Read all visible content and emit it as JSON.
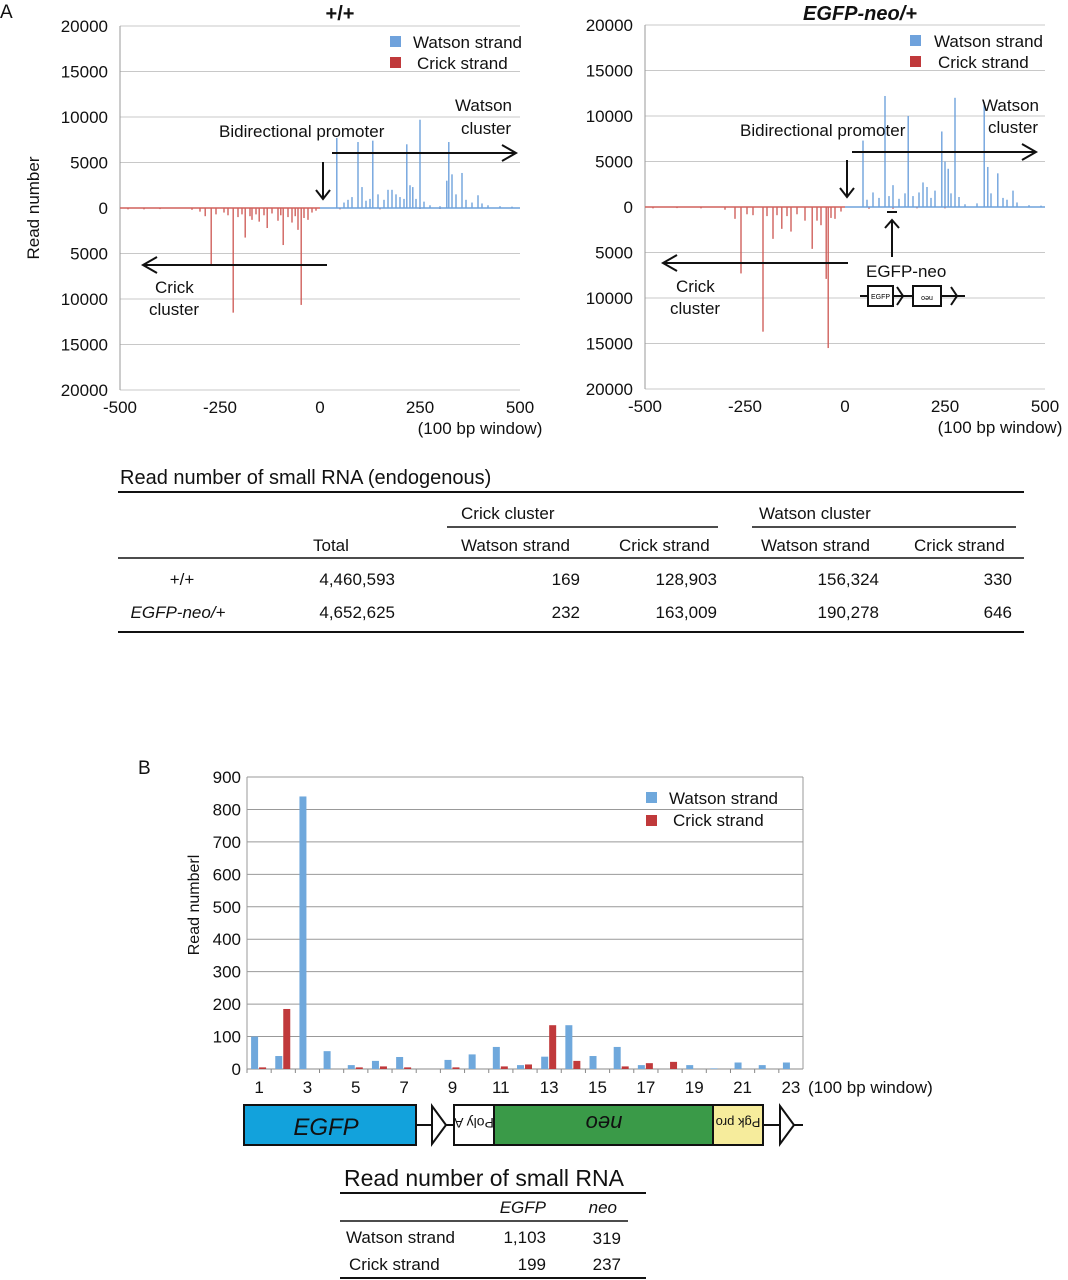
{
  "panel_labels": {
    "a": "A",
    "b": "B"
  },
  "colors": {
    "watson": "#6fa2dc",
    "crick": "#d0605c",
    "watson_b": "#6fa8dc",
    "crick_b": "#c0393b",
    "egfp": "#12a2dc",
    "neo": "#3a9a48",
    "pgk": "#f6ec9c"
  },
  "chart_data": [
    {
      "type": "bar",
      "title": "+/+",
      "ylabel": "Read number",
      "xlabel": "(100 bp window)",
      "xlim": [
        -500,
        500
      ],
      "ylim": [
        -20000,
        20000
      ],
      "x_ticks": [
        -500,
        -250,
        0,
        250,
        500
      ],
      "x_tick_labels": [
        "-500",
        "-250",
        "0",
        "250",
        "500"
      ],
      "y_ticks": [
        20000,
        15000,
        10000,
        5000,
        0,
        -5000,
        -10000,
        -15000,
        -20000
      ],
      "y_tick_labels": [
        "20000",
        "15000",
        "10000",
        "5000",
        "0",
        "5000",
        "10000",
        "15000",
        "20000"
      ],
      "grid": true,
      "legend": "top-right",
      "annotations": {
        "promoter": "Bidirectional promoter",
        "watson_1": "Watson",
        "watson_2": "cluster",
        "crick_1": "Crick",
        "crick_2": "cluster"
      },
      "series": [
        {
          "name": "Watson strand",
          "color": "#6fa2dc",
          "points": [
            [
              42,
              7700
            ],
            [
              60,
              600
            ],
            [
              70,
              900
            ],
            [
              80,
              1200
            ],
            [
              95,
              7250
            ],
            [
              105,
              2300
            ],
            [
              115,
              800
            ],
            [
              125,
              1000
            ],
            [
              132,
              7400
            ],
            [
              145,
              1500
            ],
            [
              160,
              900
            ],
            [
              170,
              2000
            ],
            [
              180,
              2000
            ],
            [
              190,
              1500
            ],
            [
              200,
              1200
            ],
            [
              210,
              1000
            ],
            [
              217,
              7000
            ],
            [
              225,
              2500
            ],
            [
              232,
              2300
            ],
            [
              240,
              1000
            ],
            [
              250,
              9700
            ],
            [
              260,
              700
            ],
            [
              275,
              300
            ],
            [
              300,
              200
            ],
            [
              317,
              3000
            ],
            [
              322,
              7250
            ],
            [
              330,
              3700
            ],
            [
              340,
              1500
            ],
            [
              355,
              3850
            ],
            [
              365,
              900
            ],
            [
              380,
              600
            ],
            [
              395,
              1400
            ],
            [
              405,
              500
            ],
            [
              420,
              300
            ],
            [
              450,
              200
            ],
            [
              480,
              150
            ]
          ]
        },
        {
          "name": "Crick strand",
          "color": "#d0605c",
          "points": [
            [
              -480,
              -150
            ],
            [
              -440,
              -150
            ],
            [
              -400,
              -120
            ],
            [
              -320,
              -200
            ],
            [
              -300,
              -400
            ],
            [
              -287,
              -900
            ],
            [
              -272,
              -6260
            ],
            [
              -260,
              -700
            ],
            [
              -240,
              -500
            ],
            [
              -230,
              -800
            ],
            [
              -217,
              -11500
            ],
            [
              -205,
              -1000
            ],
            [
              -195,
              -700
            ],
            [
              -187,
              -3250
            ],
            [
              -175,
              -900
            ],
            [
              -170,
              -1300
            ],
            [
              -160,
              -700
            ],
            [
              -152,
              -1500
            ],
            [
              -140,
              -800
            ],
            [
              -132,
              -2200
            ],
            [
              -120,
              -600
            ],
            [
              -105,
              -1400
            ],
            [
              -98,
              -800
            ],
            [
              -92,
              -4070
            ],
            [
              -80,
              -1000
            ],
            [
              -70,
              -1600
            ],
            [
              -62,
              -900
            ],
            [
              -55,
              -2400
            ],
            [
              -47,
              -10650
            ],
            [
              -40,
              -1100
            ],
            [
              -30,
              -1300
            ],
            [
              -20,
              -500
            ],
            [
              -10,
              -300
            ],
            [
              50,
              -150
            ],
            [
              150,
              -150
            ],
            [
              250,
              -100
            ],
            [
              300,
              -100
            ]
          ]
        }
      ]
    },
    {
      "type": "bar",
      "title": "EGFP-neo/+",
      "xlabel": "(100 bp window)",
      "xlim": [
        -500,
        500
      ],
      "ylim": [
        -20000,
        20000
      ],
      "x_ticks": [
        -500,
        -250,
        0,
        250,
        500
      ],
      "x_tick_labels": [
        "-500",
        "-250",
        "0",
        "250",
        "500"
      ],
      "y_ticks": [
        20000,
        15000,
        10000,
        5000,
        0,
        -5000,
        -10000,
        -15000,
        -20000
      ],
      "y_tick_labels": [
        "20000",
        "15000",
        "10000",
        "5000",
        "0",
        "5000",
        "10000",
        "15000",
        "20000"
      ],
      "grid": true,
      "legend": "top-right",
      "annotations": {
        "promoter": "Bidirectional promoter",
        "watson_1": "Watson",
        "watson_2": "cluster",
        "crick_1": "Crick",
        "crick_2": "cluster",
        "insert": "EGFP-neo",
        "insert_egfp": "EGFP",
        "insert_neo": "neo"
      },
      "series": [
        {
          "name": "Watson strand",
          "color": "#6fa2dc",
          "points": [
            [
              45,
              7300
            ],
            [
              55,
              800
            ],
            [
              70,
              1600
            ],
            [
              85,
              1000
            ],
            [
              100,
              12200
            ],
            [
              110,
              1200
            ],
            [
              120,
              2400
            ],
            [
              135,
              900
            ],
            [
              150,
              1500
            ],
            [
              158,
              10000
            ],
            [
              170,
              1200
            ],
            [
              185,
              1600
            ],
            [
              195,
              2700
            ],
            [
              205,
              2200
            ],
            [
              215,
              1000
            ],
            [
              225,
              1800
            ],
            [
              242,
              8300
            ],
            [
              250,
              5000
            ],
            [
              258,
              4200
            ],
            [
              265,
              1500
            ],
            [
              275,
              12000
            ],
            [
              285,
              1100
            ],
            [
              300,
              300
            ],
            [
              330,
              400
            ],
            [
              348,
              11500
            ],
            [
              357,
              4400
            ],
            [
              365,
              1500
            ],
            [
              382,
              3700
            ],
            [
              395,
              1000
            ],
            [
              405,
              800
            ],
            [
              420,
              1800
            ],
            [
              430,
              500
            ],
            [
              460,
              200
            ],
            [
              490,
              150
            ]
          ]
        },
        {
          "name": "Crick strand",
          "color": "#d0605c",
          "points": [
            [
              -480,
              -150
            ],
            [
              -420,
              -120
            ],
            [
              -360,
              -150
            ],
            [
              -300,
              -300
            ],
            [
              -275,
              -1300
            ],
            [
              -260,
              -7300
            ],
            [
              -245,
              -800
            ],
            [
              -230,
              -900
            ],
            [
              -205,
              -13700
            ],
            [
              -195,
              -1000
            ],
            [
              -180,
              -3500
            ],
            [
              -170,
              -900
            ],
            [
              -158,
              -2400
            ],
            [
              -145,
              -1000
            ],
            [
              -135,
              -2700
            ],
            [
              -120,
              -800
            ],
            [
              -100,
              -1500
            ],
            [
              -82,
              -4600
            ],
            [
              -70,
              -1500
            ],
            [
              -60,
              -2000
            ],
            [
              -47,
              -7900
            ],
            [
              -42,
              -15500
            ],
            [
              -35,
              -1200
            ],
            [
              -25,
              -1300
            ],
            [
              -10,
              -500
            ],
            [
              60,
              -200
            ],
            [
              120,
              -200
            ],
            [
              180,
              -150
            ],
            [
              250,
              -150
            ]
          ]
        }
      ]
    },
    {
      "type": "bar",
      "ylabel": "Read numberl",
      "xlabel": "(100 bp window)",
      "ylim": [
        0,
        900
      ],
      "categories": [
        1,
        2,
        3,
        4,
        5,
        6,
        7,
        8,
        9,
        10,
        11,
        12,
        13,
        14,
        15,
        16,
        17,
        18,
        19,
        20,
        21,
        22,
        23
      ],
      "x_tick_labels": [
        "1",
        "3",
        "5",
        "7",
        "9",
        "11",
        "13",
        "15",
        "17",
        "19",
        "21",
        "23"
      ],
      "y_ticks": [
        0,
        100,
        200,
        300,
        400,
        500,
        600,
        700,
        800,
        900
      ],
      "y_tick_labels": [
        "0",
        "100",
        "200",
        "300",
        "400",
        "500",
        "600",
        "700",
        "800",
        "900"
      ],
      "grid": true,
      "legend": "top-right",
      "series": [
        {
          "name": "Watson strand",
          "color": "#6fa8dc",
          "values": [
            100,
            40,
            840,
            55,
            12,
            25,
            37,
            0,
            28,
            45,
            68,
            12,
            38,
            135,
            40,
            68,
            12,
            0,
            12,
            2,
            20,
            12,
            20
          ]
        },
        {
          "name": "Crick strand",
          "color": "#c0393b",
          "values": [
            5,
            185,
            0,
            0,
            5,
            8,
            5,
            0,
            5,
            0,
            8,
            14,
            135,
            25,
            0,
            8,
            18,
            22,
            0,
            0,
            0,
            0,
            0
          ]
        }
      ],
      "gene_map": {
        "egfp": "EGFP",
        "polya": "Poly A",
        "neo": "neo",
        "pgk": "Pgk pro"
      }
    }
  ],
  "table_a": {
    "title": "Read number of small RNA  (endogenous)",
    "group_crick": "Crick cluster",
    "group_watson": "Watson cluster",
    "headers": [
      "Total",
      "Watson strand",
      "Crick strand",
      "Watson strand",
      "Crick strand"
    ],
    "rows": [
      {
        "label": "+/+",
        "values": [
          "4,460,593",
          "169",
          "128,903",
          "156,324",
          "330"
        ]
      },
      {
        "label": "EGFP-neo/+",
        "values": [
          "4,652,625",
          "232",
          "163,009",
          "190,278",
          "646"
        ]
      }
    ]
  },
  "table_b": {
    "title": "Read number of small RNA",
    "headers": [
      "EGFP",
      "neo"
    ],
    "rows": [
      {
        "label": "Watson strand",
        "values": [
          "1,103",
          "319"
        ]
      },
      {
        "label": "Crick strand",
        "values": [
          "199",
          "237"
        ]
      }
    ]
  }
}
